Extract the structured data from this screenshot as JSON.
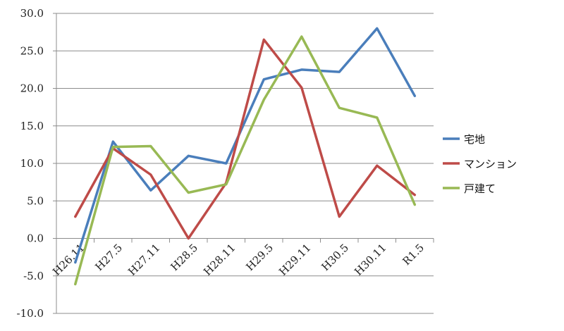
{
  "chart_data": {
    "type": "line",
    "title": "",
    "xlabel": "",
    "ylabel": "",
    "ylim": [
      -10,
      30
    ],
    "y_ticks": [
      "30.0",
      "25.0",
      "20.0",
      "15.0",
      "10.0",
      "5.0",
      "0.0",
      "-5.0",
      "-10.0"
    ],
    "categories": [
      "H26.11",
      "H27.5",
      "H27.11",
      "H28.5",
      "H28.11",
      "H29.5",
      "H29.11",
      "H30.5",
      "H30.11",
      "R1.5"
    ],
    "grid": true,
    "legend_position": "right",
    "series": [
      {
        "name": "宅地",
        "color": "#4a7ebb",
        "values": [
          -3.2,
          12.9,
          6.4,
          11.0,
          10.0,
          21.2,
          22.5,
          22.2,
          28.0,
          19.0
        ]
      },
      {
        "name": "マンション",
        "color": "#be4b48",
        "values": [
          2.9,
          12.0,
          8.5,
          0.0,
          7.4,
          26.5,
          20.1,
          2.9,
          9.7,
          5.8
        ]
      },
      {
        "name": "戸建て",
        "color": "#98b954",
        "values": [
          -6.1,
          12.2,
          12.3,
          6.1,
          7.2,
          18.5,
          26.9,
          17.4,
          16.1,
          4.5
        ]
      }
    ]
  }
}
